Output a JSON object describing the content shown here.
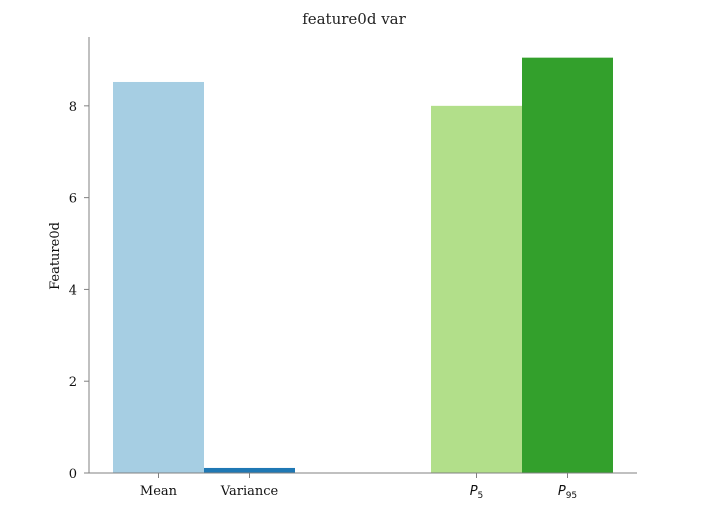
{
  "chart_data": {
    "type": "bar",
    "title": "feature0d var",
    "xlabel": "",
    "ylabel": "Feature0d",
    "ylim": [
      0,
      9.5
    ],
    "yticks": [
      0,
      2,
      4,
      6,
      8
    ],
    "grid": false,
    "categories": [
      "Mean",
      "Variance",
      "P5",
      "P95"
    ],
    "category_labels": [
      {
        "main": "Mean",
        "sub": ""
      },
      {
        "main": "Variance",
        "sub": ""
      },
      {
        "main": "P",
        "sub": "5"
      },
      {
        "main": "P",
        "sub": "95"
      }
    ],
    "values": [
      8.52,
      0.11,
      8.0,
      9.05
    ],
    "colors": [
      "#a6cee3",
      "#1f78b4",
      "#b2df8a",
      "#33a02c"
    ]
  }
}
